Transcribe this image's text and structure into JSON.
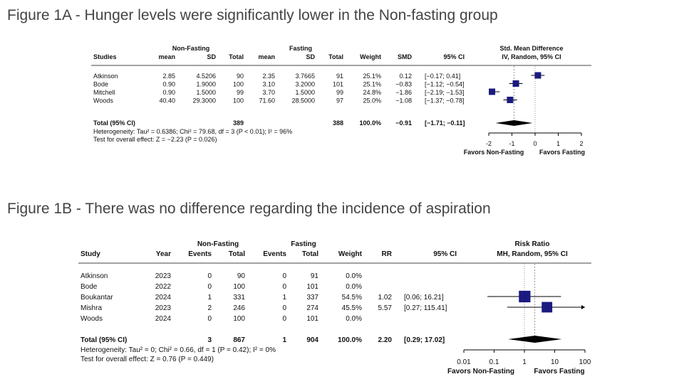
{
  "figure_a": {
    "title": "Figure 1A - Hunger levels were significantly lower in the Non-fasting group",
    "group1_label": "Non-Fasting",
    "group2_label": "Fasting",
    "columns": {
      "studies": "Studies",
      "mean1": "mean",
      "sd1": "SD",
      "total1": "Total",
      "mean2": "mean",
      "sd2": "SD",
      "total2": "Total",
      "weight": "Weight",
      "effect": "SMD",
      "ci": "95% CI",
      "plot_title_1": "Std. Mean Difference",
      "plot_title_2": "IV, Random, 95% CI"
    },
    "rows": [
      {
        "study": "Atkinson",
        "mean1": "2.85",
        "sd1": "4.5206",
        "total1": "90",
        "mean2": "2.35",
        "sd2": "3.7665",
        "total2": "91",
        "weight": "25.1%",
        "effect": "0.12",
        "ci": "[−0.17; 0.41]"
      },
      {
        "study": "Bode",
        "mean1": "0.90",
        "sd1": "1.9000",
        "total1": "100",
        "mean2": "3.10",
        "sd2": "3.2000",
        "total2": "101",
        "weight": "25.1%",
        "effect": "−0.83",
        "ci": "[−1.12; −0.54]"
      },
      {
        "study": "Mitchell",
        "mean1": "0.90",
        "sd1": "1.5000",
        "total1": "99",
        "mean2": "3.70",
        "sd2": "1.5000",
        "total2": "99",
        "weight": "24.8%",
        "effect": "−1.86",
        "ci": "[−2.19; −1.53]"
      },
      {
        "study": "Woods",
        "mean1": "40.40",
        "sd1": "29.3000",
        "total1": "100",
        "mean2": "71.60",
        "sd2": "28.5000",
        "total2": "97",
        "weight": "25.0%",
        "effect": "−1.08",
        "ci": "[−1.37; −0.78]"
      }
    ],
    "total": {
      "label": "Total (95% CI)",
      "total1": "389",
      "total2": "388",
      "weight": "100.0%",
      "effect": "−0.91",
      "ci": "[−1.71; −0.11]"
    },
    "heterogeneity": "Heterogeneity: Tau² = 0.6386; Chi² = 79.68, df = 3 (P < 0.01); I² = 96%",
    "overall_test": "Test for overall effect: Z = −2.23 (P = 0.026)",
    "favors_left": "Favors Non-Fasting",
    "favors_right": "Favors Fasting"
  },
  "figure_b": {
    "title": "Figure 1B - There was no difference regarding the incidence of aspiration",
    "group1_label": "Non-Fasting",
    "group2_label": "Fasting",
    "columns": {
      "study": "Study",
      "year": "Year",
      "events1": "Events",
      "total1": "Total",
      "events2": "Events",
      "total2": "Total",
      "weight": "Weight",
      "effect": "RR",
      "ci": "95% CI",
      "plot_title_1": "Risk Ratio",
      "plot_title_2": "MH, Random, 95% CI"
    },
    "rows": [
      {
        "study": "Atkinson",
        "year": "2023",
        "events1": "0",
        "total1": "90",
        "events2": "0",
        "total2": "91",
        "weight": "0.0%",
        "effect": "",
        "ci": ""
      },
      {
        "study": "Bode",
        "year": "2022",
        "events1": "0",
        "total1": "100",
        "events2": "0",
        "total2": "101",
        "weight": "0.0%",
        "effect": "",
        "ci": ""
      },
      {
        "study": "Boukantar",
        "year": "2024",
        "events1": "1",
        "total1": "331",
        "events2": "1",
        "total2": "337",
        "weight": "54.5%",
        "effect": "1.02",
        "ci": "[0.06; 16.21]"
      },
      {
        "study": "Mishra",
        "year": "2023",
        "events1": "2",
        "total1": "246",
        "events2": "0",
        "total2": "274",
        "weight": "45.5%",
        "effect": "5.57",
        "ci": "[0.27; 115.41]"
      },
      {
        "study": "Woods",
        "year": "2024",
        "events1": "0",
        "total1": "100",
        "events2": "0",
        "total2": "101",
        "weight": "0.0%",
        "effect": "",
        "ci": ""
      }
    ],
    "total": {
      "label": "Total (95% CI)",
      "events1": "3",
      "total1": "867",
      "events2": "1",
      "total2": "904",
      "weight": "100.0%",
      "effect": "2.20",
      "ci": "[0.29; 17.02]"
    },
    "heterogeneity": "Heterogeneity: Tau² = 0; Chi² = 0.66, df = 1 (P = 0.42); I² = 0%",
    "overall_test": "Test for overall effect: Z = 0.76 (P = 0.449)",
    "favors_left": "Favors Non-Fasting",
    "favors_right": "Favors Fasting"
  },
  "chart_data": [
    {
      "type": "forest",
      "scale": "linear",
      "xlim": [
        -2,
        2
      ],
      "ticks": [
        -2,
        -1,
        0,
        1,
        2
      ],
      "tick_labels": [
        "-2",
        "-1",
        "0",
        "1",
        "2"
      ],
      "reference_line": 0,
      "colors": {
        "marker": "#1a1a80",
        "diamond": "#000000"
      },
      "studies": [
        {
          "name": "Atkinson",
          "estimate": 0.12,
          "lower": -0.17,
          "upper": 0.41,
          "weight": 25.1
        },
        {
          "name": "Bode",
          "estimate": -0.83,
          "lower": -1.12,
          "upper": -0.54,
          "weight": 25.1
        },
        {
          "name": "Mitchell",
          "estimate": -1.86,
          "lower": -2.19,
          "upper": -1.53,
          "weight": 24.8
        },
        {
          "name": "Woods",
          "estimate": -1.08,
          "lower": -1.37,
          "upper": -0.78,
          "weight": 25.0
        }
      ],
      "pooled": {
        "estimate": -0.91,
        "lower": -1.71,
        "upper": -0.11
      }
    },
    {
      "type": "forest",
      "scale": "log",
      "xlim": [
        0.01,
        100
      ],
      "ticks": [
        0.01,
        0.1,
        1,
        10,
        100
      ],
      "tick_labels": [
        "0.01",
        "0.1",
        "1",
        "10",
        "100"
      ],
      "reference_line": 1,
      "colors": {
        "marker": "#1a1a80",
        "diamond": "#000000"
      },
      "studies": [
        {
          "name": "Boukantar",
          "estimate": 1.02,
          "lower": 0.06,
          "upper": 16.21,
          "weight": 54.5
        },
        {
          "name": "Mishra",
          "estimate": 5.57,
          "lower": 0.27,
          "upper": 115.41,
          "weight": 45.5
        }
      ],
      "pooled": {
        "estimate": 2.2,
        "lower": 0.29,
        "upper": 17.02
      }
    }
  ]
}
